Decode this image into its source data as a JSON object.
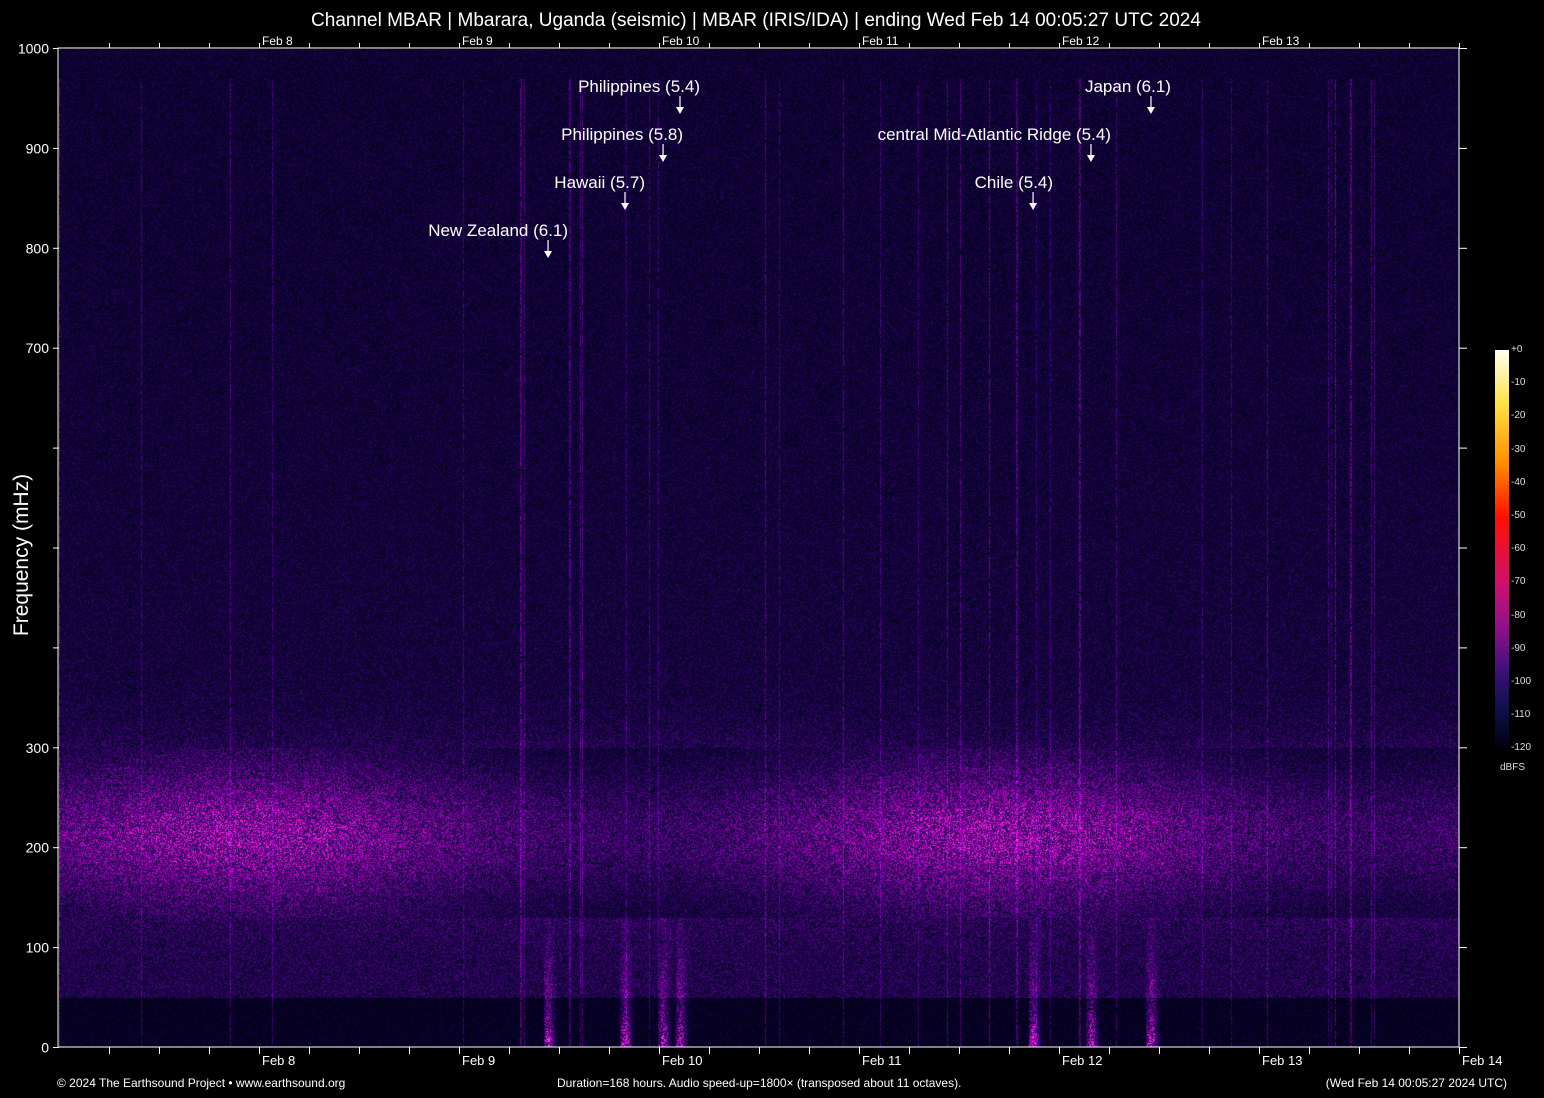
{
  "title": "Channel MBAR | Mbarara, Uganda (seismic) | MBAR (IRIS/IDA) | ending Wed Feb 14 00:05:27 UTC 2024",
  "footer": {
    "left": "© 2024 The Earthsound Project • www.earthsound.org",
    "center": "Duration=168 hours. Audio speed-up=1800× (transposed about 11 octaves).",
    "right": "(Wed Feb 14 00:05:27 2024 UTC)"
  },
  "chart_data": {
    "type": "heatmap",
    "title": "Channel MBAR | Mbarara, Uganda (seismic) | MBAR (IRIS/IDA) | ending Wed Feb 14 00:05:27 UTC 2024",
    "ylabel": "Frequency (mHz)",
    "xlabel": "",
    "ylim": [
      0,
      1000
    ],
    "xlim": [
      "Feb 7 00:05",
      "Feb 14 00:05"
    ],
    "y_tick_labels": [
      "0",
      "100",
      "200",
      "300",
      "",
      "",
      "",
      "700",
      "800",
      "900",
      "1000"
    ],
    "x_tick_labels": [
      "Feb  8",
      "Feb  9",
      "Feb 10",
      "Feb 11",
      "Feb 12",
      "Feb 13",
      "Feb 14"
    ],
    "top_tick_labels": [
      "Feb  8",
      "Feb  9",
      "Feb 10",
      "Feb 11",
      "Feb 12",
      "Feb 13"
    ],
    "colorbar": {
      "label": "dBFS",
      "ticks": [
        "+0",
        "-10",
        "-20",
        "-30",
        "-40",
        "-50",
        "-60",
        "-70",
        "-80",
        "-90",
        "-100",
        "-110",
        "-120"
      ],
      "range": [
        -120,
        0
      ],
      "colormap": [
        "#000010",
        "#10104a",
        "#40107a",
        "#90108a",
        "#d0106a",
        "#ff1000",
        "#ff9000",
        "#ffe040",
        "#fffff0"
      ]
    },
    "background_band_mHz": [
      130,
      280
    ],
    "events": [
      {
        "label": "New Zealand (6.1)",
        "time": "Feb 9 10:34"
      },
      {
        "label": "Hawaii (5.7)",
        "time": "Feb 9 19:48"
      },
      {
        "label": "Philippines (5.8)",
        "time": "Feb 10 00:22"
      },
      {
        "label": "Philippines (5.4)",
        "time": "Feb 10 02:24"
      },
      {
        "label": "Chile (5.4)",
        "time": "Feb 11 20:46"
      },
      {
        "label": "central Mid-Atlantic Ridge (5.4)",
        "time": "Feb 12 03:43"
      },
      {
        "label": "Japan (6.1)",
        "time": "Feb 12 10:55"
      }
    ]
  }
}
